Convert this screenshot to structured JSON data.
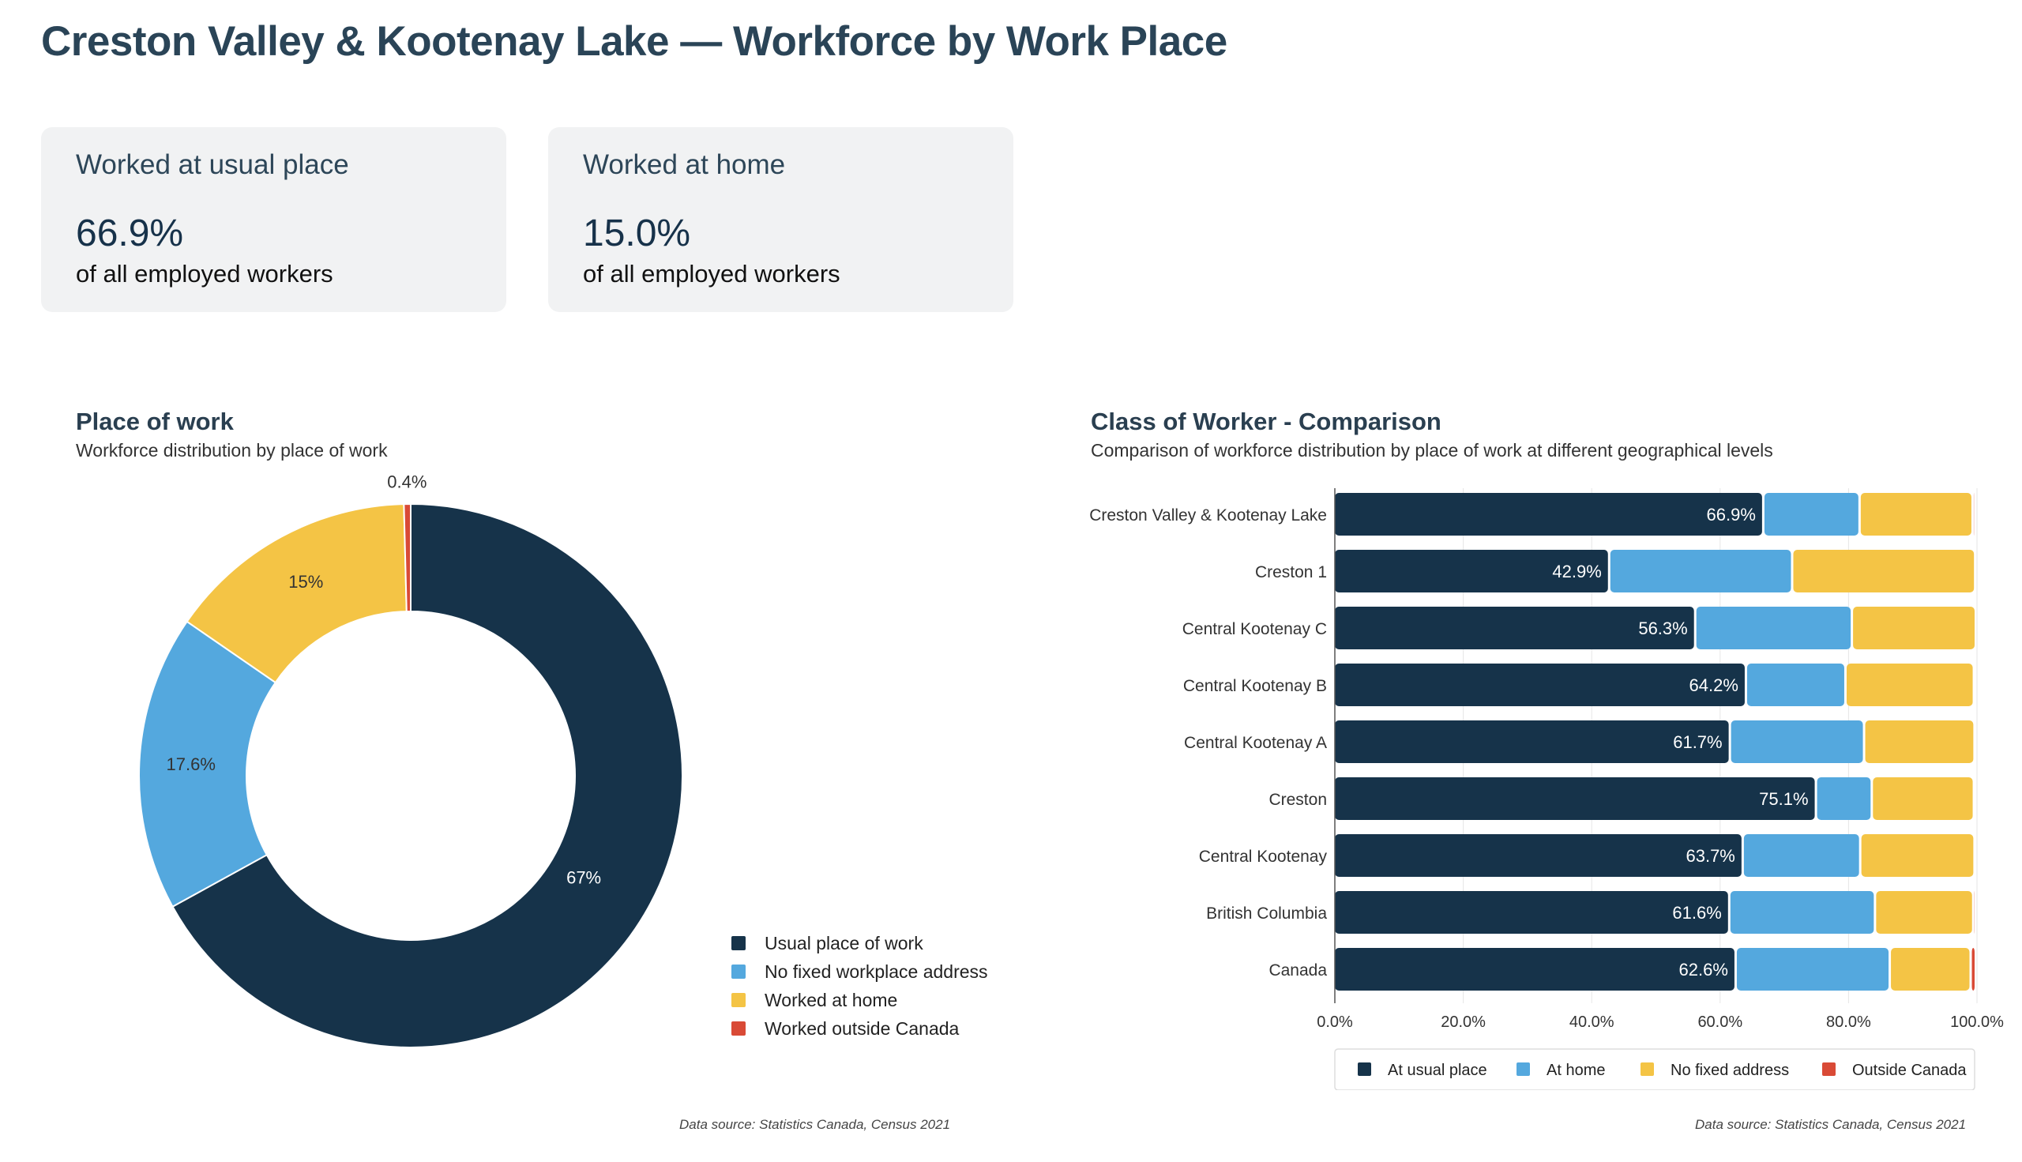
{
  "header": {
    "title": "Creston Valley & Kootenay Lake — Workforce by Work Place"
  },
  "kpis": [
    {
      "label": "Worked at usual place",
      "value": "66.9%",
      "sub": "of all employed workers"
    },
    {
      "label": "Worked at home",
      "value": "15.0%",
      "sub": "of all employed workers"
    }
  ],
  "colors": {
    "navy": "#16334a",
    "blue": "#54a8de",
    "yellow": "#f4c445",
    "red": "#d94a36"
  },
  "chart_data": [
    {
      "type": "pie",
      "title": "Place of work",
      "subtitle": "Workforce distribution by place of work",
      "donut": true,
      "slices": [
        {
          "name": "Usual place of work",
          "value": 67,
          "label": "67%",
          "color": "#16334a"
        },
        {
          "name": "No fixed workplace address",
          "value": 17.6,
          "label": "17.6%",
          "color": "#54a8de"
        },
        {
          "name": "Worked at home",
          "value": 15,
          "label": "15%",
          "color": "#f4c445"
        },
        {
          "name": "Worked outside Canada",
          "value": 0.4,
          "label": "0.4%",
          "color": "#d94a36"
        }
      ],
      "legend_position": "bottom-right",
      "source": "Data source: Statistics Canada, Census 2021"
    },
    {
      "type": "bar",
      "orientation": "horizontal",
      "stacked": true,
      "title": "Class of Worker - Comparison",
      "subtitle": "Comparison of workforce distribution by place of work at different geographical levels",
      "categories": [
        "Creston Valley & Kootenay Lake",
        "Creston 1",
        "Central Kootenay C",
        "Central Kootenay B",
        "Central Kootenay A",
        "Creston",
        "Central Kootenay",
        "British Columbia",
        "Canada"
      ],
      "series": [
        {
          "name": "At usual place",
          "color": "#16334a",
          "values": [
            66.9,
            42.9,
            56.3,
            64.2,
            61.7,
            75.1,
            63.7,
            61.6,
            62.6
          ],
          "labels": [
            "66.9%",
            "42.9%",
            "56.3%",
            "64.2%",
            "61.7%",
            "75.1%",
            "63.7%",
            "61.6%",
            "62.6%"
          ]
        },
        {
          "name": "At home",
          "color": "#54a8de",
          "values": [
            15.0,
            28.5,
            24.4,
            15.5,
            20.9,
            8.7,
            18.3,
            22.7,
            24.0
          ]
        },
        {
          "name": "No fixed address",
          "color": "#f4c445",
          "values": [
            17.6,
            28.5,
            19.3,
            20.0,
            17.2,
            15.9,
            17.8,
            15.3,
            12.6
          ]
        },
        {
          "name": "Outside Canada",
          "color": "#d94a36",
          "values": [
            0.4,
            0.1,
            0.0,
            0.3,
            0.2,
            0.3,
            0.2,
            0.4,
            0.8
          ]
        }
      ],
      "xlim": [
        0,
        100
      ],
      "x_ticks": [
        "0.0%",
        "20.0%",
        "40.0%",
        "60.0%",
        "80.0%",
        "100.0%"
      ],
      "legend_position": "bottom",
      "source": "Data source: Statistics Canada, Census 2021"
    }
  ]
}
